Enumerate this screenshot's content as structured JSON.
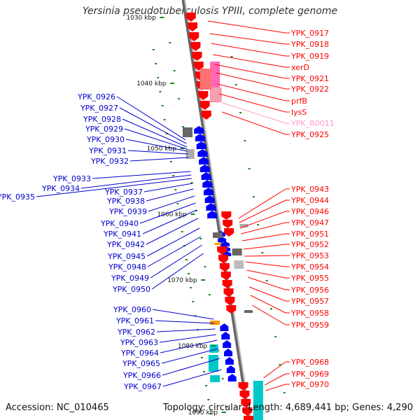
{
  "title": "Yersinia pseudotuberculosis YPIII, complete genome",
  "accession_text": "Accession: NC_010465",
  "summary_text": "Topology: circular; Length: 4,689,441 bp; Genes: 4,290",
  "ruler_labels": [
    "1030 kbp",
    "1040 kbp",
    "1050 kbp",
    "1060 kbp",
    "1070 kbp",
    "1080 kbp",
    "1090 kbp"
  ],
  "colors": {
    "reverse_strand": "#ff0000",
    "forward_strand": "#0000ff",
    "rrna_trna": "#ff69b4",
    "other_feature": "#00c8c8",
    "pseudo": "#888888",
    "tick": "#1a8a1a",
    "backbone": "#888888"
  },
  "right_labels": [
    {
      "text": "YPK_0917",
      "color": "#ff0000"
    },
    {
      "text": "YPK_0918",
      "color": "#ff0000"
    },
    {
      "text": "YPK_0919",
      "color": "#ff0000"
    },
    {
      "text": "xerD",
      "color": "#ff0000"
    },
    {
      "text": "YPK_0921",
      "color": "#ff0000"
    },
    {
      "text": "YPK_0922",
      "color": "#ff0000"
    },
    {
      "text": "prfB",
      "color": "#ff0000"
    },
    {
      "text": "lysS",
      "color": "#ff0000"
    },
    {
      "text": "YPK_R0011",
      "color": "#ff99cc"
    },
    {
      "text": "YPK_0925",
      "color": "#ff0000"
    },
    {
      "text": "YPK_0943",
      "color": "#ff0000"
    },
    {
      "text": "YPK_0944",
      "color": "#ff0000"
    },
    {
      "text": "YPK_0946",
      "color": "#ff0000"
    },
    {
      "text": "YPK_0947",
      "color": "#ff0000"
    },
    {
      "text": "YPK_0951",
      "color": "#ff0000"
    },
    {
      "text": "YPK_0952",
      "color": "#ff0000"
    },
    {
      "text": "YPK_0953",
      "color": "#ff0000"
    },
    {
      "text": "YPK_0954",
      "color": "#ff0000"
    },
    {
      "text": "YPK_0955",
      "color": "#ff0000"
    },
    {
      "text": "YPK_0956",
      "color": "#ff0000"
    },
    {
      "text": "YPK_0957",
      "color": "#ff0000"
    },
    {
      "text": "YPK_0958",
      "color": "#ff0000"
    },
    {
      "text": "YPK_0959",
      "color": "#ff0000"
    },
    {
      "text": "YPK_0968",
      "color": "#ff0000"
    },
    {
      "text": "YPK_0969",
      "color": "#ff0000"
    },
    {
      "text": "YPK_0970",
      "color": "#ff0000"
    }
  ],
  "left_labels": [
    {
      "text": "YPK_0926",
      "color": "#0000cc"
    },
    {
      "text": "YPK_0927",
      "color": "#0000cc"
    },
    {
      "text": "YPK_0928",
      "color": "#0000cc"
    },
    {
      "text": "YPK_0929",
      "color": "#0000cc"
    },
    {
      "text": "YPK_0930",
      "color": "#0000cc"
    },
    {
      "text": "YPK_0931",
      "color": "#0000cc"
    },
    {
      "text": "YPK_0932",
      "color": "#0000cc"
    },
    {
      "text": "YPK_0933",
      "color": "#0000cc"
    },
    {
      "text": "YPK_0934",
      "color": "#0000cc"
    },
    {
      "text": "YPK_0935",
      "color": "#0000cc"
    },
    {
      "text": "YPK_0937",
      "color": "#0000cc"
    },
    {
      "text": "YPK_0938",
      "color": "#0000cc"
    },
    {
      "text": "YPK_0939",
      "color": "#0000cc"
    },
    {
      "text": "YPK_0940",
      "color": "#0000cc"
    },
    {
      "text": "YPK_0941",
      "color": "#0000cc"
    },
    {
      "text": "YPK_0942",
      "color": "#0000cc"
    },
    {
      "text": "YPK_0945",
      "color": "#0000cc"
    },
    {
      "text": "YPK_0948",
      "color": "#0000cc"
    },
    {
      "text": "YPK_0949",
      "color": "#0000cc"
    },
    {
      "text": "YPK_0950",
      "color": "#0000cc"
    },
    {
      "text": "YPK_0960",
      "color": "#0000cc"
    },
    {
      "text": "YPK_0961",
      "color": "#0000cc"
    },
    {
      "text": "YPK_0962",
      "color": "#0000cc"
    },
    {
      "text": "YPK_0963",
      "color": "#0000cc"
    },
    {
      "text": "YPK_0964",
      "color": "#0000cc"
    },
    {
      "text": "YPK_0965",
      "color": "#0000cc"
    },
    {
      "text": "YPK_0966",
      "color": "#0000cc"
    },
    {
      "text": "YPK_0967",
      "color": "#0000cc"
    }
  ]
}
